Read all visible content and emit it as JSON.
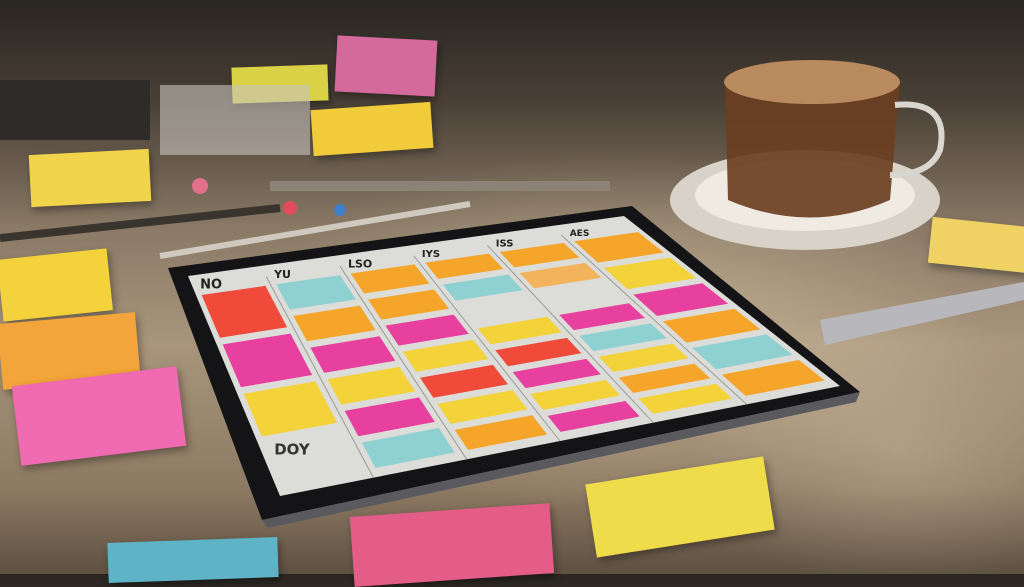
{
  "scene": {
    "description_colors": {
      "desk": "#a8957c",
      "tablet_frame": "#1b1b1d",
      "screen": "#dcdcda"
    },
    "tablet": {
      "column_headers": [
        "NO",
        "YU",
        "LSO",
        "IYS",
        "ISS",
        "AES"
      ],
      "row_label": "DOY"
    },
    "note_colors": {
      "pink": "#ec3f9a",
      "magenta": "#e8409e",
      "yellow": "#f4d23a",
      "orange": "#f5a52a",
      "red": "#ef4a3a",
      "teal": "#8fd0d0",
      "peach": "#f2b35a"
    }
  }
}
